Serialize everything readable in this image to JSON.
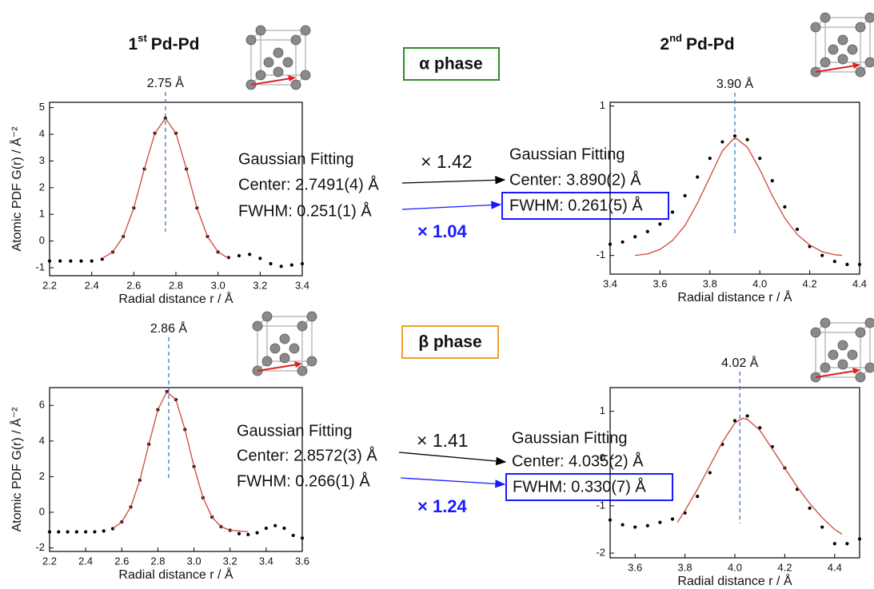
{
  "chart_data": [
    {
      "type": "line",
      "xlabel": "Radial distance r / Å",
      "ylabel": "Atomic PDF G(r) / Å⁻²",
      "xlim": [
        2.2,
        3.4
      ],
      "xticks": [
        2.2,
        2.4,
        2.6,
        2.8,
        {
          "value": 3,
          "label": "3.0"
        },
        3.2,
        3.4
      ],
      "ylim": [
        -1.3,
        5.2
      ],
      "yticks": [
        -1,
        0,
        1,
        2,
        3,
        4,
        5
      ],
      "peak_x": 2.75,
      "peak_label": "2.75 Å",
      "series": [
        {
          "color": "#000000",
          "marker": "dot",
          "x": [
            2.2,
            2.25,
            2.3,
            2.35,
            2.4,
            2.45,
            2.5,
            2.55,
            2.6,
            2.65,
            2.7,
            2.75,
            2.8,
            2.85,
            2.9,
            2.95,
            3.0,
            3.05,
            3.1,
            3.15,
            3.2,
            3.25,
            3.3,
            3.35,
            3.4
          ],
          "values": [
            -0.75,
            -0.75,
            -0.75,
            -0.75,
            -0.75,
            -0.68,
            -0.41,
            0.17,
            1.24,
            2.7,
            4.04,
            4.6,
            4.04,
            2.7,
            1.24,
            0.17,
            -0.41,
            -0.62,
            -0.55,
            -0.5,
            -0.65,
            -0.85,
            -0.95,
            -0.9,
            -0.85
          ]
        },
        {
          "color": "#d0463a",
          "marker": "none",
          "x": [
            2.45,
            2.5,
            2.55,
            2.6,
            2.65,
            2.7,
            2.75,
            2.8,
            2.85,
            2.9,
            2.95,
            3.0,
            3.05
          ],
          "values": [
            -0.65,
            -0.41,
            0.17,
            1.24,
            2.7,
            4.04,
            4.6,
            4.04,
            2.7,
            1.24,
            0.17,
            -0.41,
            -0.65
          ]
        }
      ]
    },
    {
      "type": "line",
      "xlabel": "Radial distance r / Å",
      "xlim": [
        3.4,
        4.4
      ],
      "xticks": [
        3.4,
        3.6,
        3.8,
        {
          "value": 4,
          "label": "4.0"
        },
        4.2,
        4.4
      ],
      "ylim": [
        -1.25,
        1.05
      ],
      "yticks": [
        -1,
        1
      ],
      "peak_x": 3.9,
      "peak_label": "3.90 Å",
      "series": [
        {
          "color": "#000000",
          "marker": "dot",
          "x": [
            3.4,
            3.45,
            3.5,
            3.55,
            3.6,
            3.65,
            3.7,
            3.75,
            3.8,
            3.85,
            3.9,
            3.95,
            4.0,
            4.05,
            4.1,
            4.15,
            4.2,
            4.25,
            4.3,
            4.35,
            4.4
          ],
          "values": [
            -0.85,
            -0.82,
            -0.75,
            -0.68,
            -0.58,
            -0.42,
            -0.2,
            0.05,
            0.3,
            0.52,
            0.6,
            0.55,
            0.3,
            0.0,
            -0.35,
            -0.65,
            -0.88,
            -1.0,
            -1.08,
            -1.12,
            -1.12
          ]
        },
        {
          "color": "#d0463a",
          "marker": "none",
          "x": [
            3.5,
            3.55,
            3.6,
            3.65,
            3.7,
            3.75,
            3.8,
            3.85,
            3.9,
            3.95,
            4.0,
            4.05,
            4.1,
            4.15,
            4.2,
            4.25,
            4.3,
            4.33
          ],
          "values": [
            -1.0,
            -0.98,
            -0.92,
            -0.8,
            -0.6,
            -0.3,
            0.05,
            0.4,
            0.58,
            0.45,
            0.15,
            -0.2,
            -0.5,
            -0.72,
            -0.86,
            -0.95,
            -0.99,
            -1.0
          ]
        }
      ]
    },
    {
      "type": "line",
      "xlabel": "Radial distance r / Å",
      "ylabel": "Atomic PDF G(r) / Å⁻²",
      "xlim": [
        2.2,
        3.6
      ],
      "xticks": [
        2.2,
        2.4,
        2.6,
        2.8,
        {
          "value": 3,
          "label": "3.0"
        },
        3.2,
        3.4,
        3.6
      ],
      "ylim": [
        -2.2,
        7.0
      ],
      "yticks": [
        -2,
        0,
        2,
        4,
        6
      ],
      "peak_x": 2.86,
      "peak_label": "2.86 Å",
      "series": [
        {
          "color": "#000000",
          "marker": "dot",
          "x": [
            2.2,
            2.25,
            2.3,
            2.35,
            2.4,
            2.45,
            2.5,
            2.55,
            2.6,
            2.65,
            2.7,
            2.75,
            2.8,
            2.85,
            2.9,
            2.95,
            3.0,
            3.05,
            3.1,
            3.15,
            3.2,
            3.25,
            3.3,
            3.35,
            3.4,
            3.45,
            3.5,
            3.55,
            3.6
          ],
          "values": [
            -1.1,
            -1.1,
            -1.1,
            -1.1,
            -1.1,
            -1.1,
            -1.05,
            -0.92,
            -0.54,
            0.3,
            1.8,
            3.82,
            5.76,
            6.77,
            6.32,
            4.65,
            2.57,
            0.82,
            -0.27,
            -0.81,
            -1.01,
            -1.2,
            -1.25,
            -1.15,
            -0.9,
            -0.75,
            -0.9,
            -1.3,
            -1.45
          ]
        },
        {
          "color": "#d0463a",
          "marker": "none",
          "x": [
            2.55,
            2.6,
            2.65,
            2.7,
            2.75,
            2.8,
            2.85,
            2.9,
            2.95,
            3.0,
            3.05,
            3.1,
            3.15,
            3.2,
            3.25,
            3.3
          ],
          "values": [
            -0.92,
            -0.54,
            0.3,
            1.8,
            3.82,
            5.76,
            6.77,
            6.32,
            4.65,
            2.57,
            0.82,
            -0.27,
            -0.81,
            -1.01,
            -1.05,
            -1.1
          ]
        }
      ]
    },
    {
      "type": "line",
      "xlabel": "Radial distance r / Å",
      "xlim": [
        3.5,
        4.5
      ],
      "xticks": [
        3.6,
        3.8,
        {
          "value": 4,
          "label": "4.0"
        },
        4.2,
        4.4
      ],
      "ylim": [
        -2.1,
        1.5
      ],
      "yticks": [
        -2,
        -1,
        0,
        1
      ],
      "peak_x": 4.02,
      "peak_label": "4.02 Å",
      "series": [
        {
          "color": "#000000",
          "marker": "dot",
          "x": [
            3.5,
            3.55,
            3.6,
            3.65,
            3.7,
            3.75,
            3.8,
            3.85,
            3.9,
            3.95,
            4.0,
            4.05,
            4.1,
            4.15,
            4.2,
            4.25,
            4.3,
            4.35,
            4.4,
            4.45,
            4.5
          ],
          "values": [
            -1.3,
            -1.4,
            -1.45,
            -1.42,
            -1.35,
            -1.28,
            -1.15,
            -0.8,
            -0.3,
            0.3,
            0.8,
            0.9,
            0.65,
            0.25,
            -0.2,
            -0.65,
            -1.05,
            -1.45,
            -1.8,
            -1.8,
            -1.7
          ]
        },
        {
          "color": "#d0463a",
          "marker": "none",
          "x": [
            3.77,
            3.8,
            3.85,
            3.9,
            3.95,
            4.0,
            4.03,
            4.05,
            4.1,
            4.15,
            4.2,
            4.25,
            4.3,
            4.35,
            4.4,
            4.43
          ],
          "values": [
            -1.35,
            -1.1,
            -0.65,
            -0.15,
            0.35,
            0.75,
            0.85,
            0.83,
            0.6,
            0.2,
            -0.2,
            -0.6,
            -0.95,
            -1.25,
            -1.5,
            -1.6
          ]
        }
      ]
    }
  ],
  "headers": [
    {
      "ordinal": "1",
      "suffix": "st",
      "rest": "Pd-Pd"
    },
    {
      "ordinal": "2",
      "suffix": "nd",
      "rest": "Pd-Pd"
    }
  ],
  "phases": [
    "α phase",
    "β phase"
  ],
  "fits": [
    {
      "left": {
        "title": "Gaussian Fitting",
        "center": "Center: 2.7491(4) Å",
        "fwhm": "FWHM: 0.251(1) Å"
      },
      "right": {
        "title": "Gaussian Fitting",
        "center": "Center: 3.890(2) Å",
        "fwhm": "FWHM: 0.261(5) Å"
      },
      "center_ratio": "× 1.42",
      "fwhm_ratio": "× 1.04"
    },
    {
      "left": {
        "title": "Gaussian Fitting",
        "center": "Center: 2.8572(3) Å",
        "fwhm": "FWHM: 0.266(1) Å"
      },
      "right": {
        "title": "Gaussian Fitting",
        "center": "Center: 4.035(2) Å",
        "fwhm": "FWHM: 0.330(7) Å"
      },
      "center_ratio": "× 1.41",
      "fwhm_ratio": "× 1.24"
    }
  ]
}
